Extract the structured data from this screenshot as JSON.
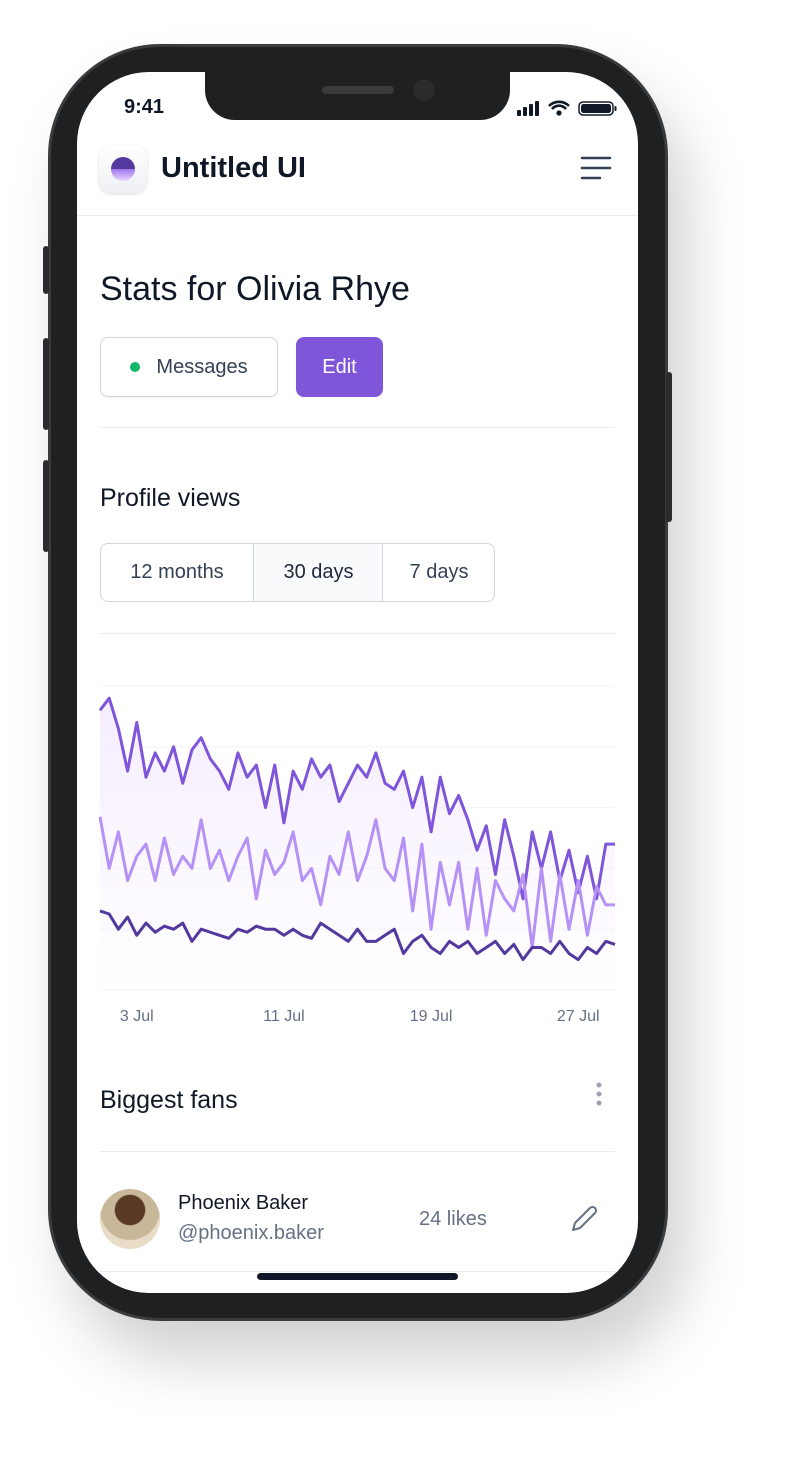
{
  "status_bar": {
    "time": "9:41"
  },
  "header": {
    "brand": "Untitled UI"
  },
  "page": {
    "title": "Stats for Olivia Rhye",
    "actions": [
      "Messages",
      "Edit"
    ]
  },
  "profile_views": {
    "title": "Profile views",
    "tabs": [
      "12 months",
      "30 days",
      "7 days"
    ],
    "selected_tab": 1
  },
  "chart_data": {
    "type": "line",
    "categories": [
      null,
      null,
      null,
      null,
      "3 Jul",
      null,
      null,
      null,
      null,
      null,
      null,
      null,
      null,
      null,
      null,
      null,
      null,
      null,
      null,
      null,
      "11 Jul",
      null,
      null,
      null,
      null,
      null,
      null,
      null,
      null,
      null,
      null,
      null,
      null,
      null,
      null,
      null,
      "19 Jul",
      null,
      null,
      null,
      null,
      null,
      null,
      null,
      null,
      null,
      null,
      null,
      null,
      null,
      null,
      null,
      "27 Jul",
      null,
      null,
      null,
      null
    ],
    "ylim": [
      0,
      100
    ],
    "grid": true,
    "series": [
      {
        "color": "#7f56d9",
        "values": [
          92,
          96,
          86,
          72,
          88,
          70,
          78,
          72,
          80,
          68,
          79,
          83,
          76,
          72,
          66,
          78,
          70,
          74,
          60,
          74,
          55,
          72,
          66,
          76,
          70,
          74,
          62,
          68,
          74,
          70,
          78,
          68,
          66,
          72,
          60,
          70,
          52,
          70,
          58,
          64,
          56,
          46,
          54,
          38,
          56,
          44,
          30,
          52,
          40,
          52,
          36,
          46,
          32,
          44,
          30,
          48,
          48
        ]
      },
      {
        "color": "#b692f6",
        "values": [
          57,
          40,
          52,
          36,
          44,
          48,
          36,
          50,
          38,
          44,
          40,
          56,
          40,
          46,
          36,
          44,
          50,
          30,
          46,
          38,
          42,
          52,
          36,
          40,
          28,
          44,
          38,
          52,
          36,
          44,
          56,
          40,
          36,
          50,
          26,
          48,
          20,
          42,
          28,
          42,
          20,
          40,
          18,
          36,
          30,
          26,
          38,
          14,
          40,
          16,
          38,
          20,
          36,
          18,
          34,
          28,
          28
        ]
      },
      {
        "color": "#53389e",
        "values": [
          26,
          25,
          20,
          24,
          18,
          22,
          19,
          21,
          20,
          22,
          16,
          20,
          19,
          18,
          17,
          20,
          19,
          21,
          20,
          20,
          18,
          20,
          18,
          17,
          22,
          20,
          18,
          16,
          20,
          16,
          16,
          18,
          20,
          12,
          16,
          18,
          14,
          12,
          16,
          14,
          16,
          12,
          14,
          16,
          12,
          15,
          10,
          14,
          14,
          12,
          16,
          12,
          10,
          14,
          12,
          16,
          15
        ]
      }
    ]
  },
  "fans": {
    "title": "Biggest fans",
    "rows": [
      {
        "name": "Phoenix Baker",
        "handle": "@phoenix.baker",
        "likes": "24 likes"
      }
    ]
  }
}
